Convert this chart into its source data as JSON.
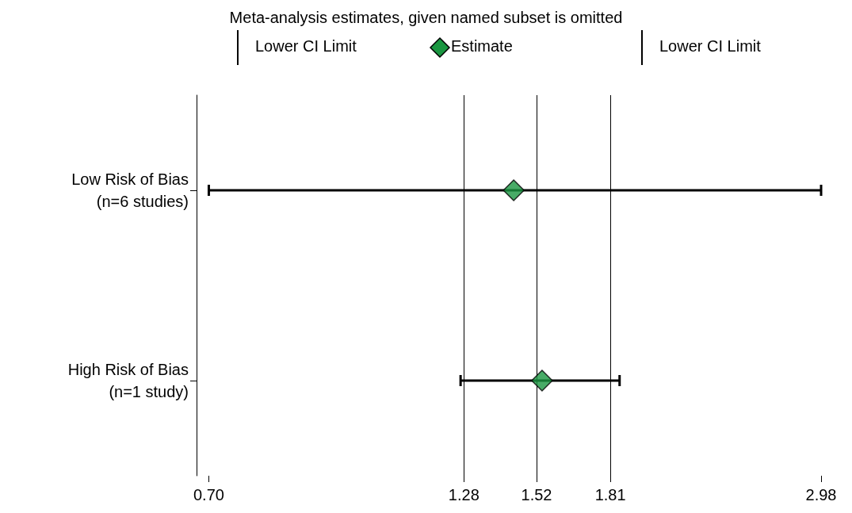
{
  "chart_data": {
    "type": "scatter",
    "orientation": "horizontal",
    "legend_title": "Meta-analysis estimates, given named subset is omitted",
    "legend": "top",
    "categories": [
      "Low Risk of Bias\n(n=6 studies)",
      "High Risk of Bias\n(n=1 study)"
    ],
    "series": [
      {
        "name": "Estimate",
        "color": "#1a9641",
        "marker": "diamond",
        "values": [
          1.44,
          1.54
        ],
        "errors": [
          [
            0.7,
            2.98
          ],
          [
            1.27,
            1.85
          ]
        ]
      }
    ],
    "annotations": [
      "Lower CI Limit",
      "Lower CI Limit"
    ],
    "log": "x",
    "xlim": [
      0.68,
      2.98
    ],
    "xticks": [
      {
        "value": 0.7,
        "label": "0.70"
      },
      1.28,
      1.52,
      1.81,
      2.98
    ],
    "ref_lines": [
      {
        "axis": "x",
        "value": 1.28,
        "color": "#000000"
      },
      {
        "axis": "x",
        "value": 1.52,
        "color": "#000000"
      },
      {
        "axis": "x",
        "value": 1.81,
        "color": "#000000"
      }
    ],
    "grid": false
  }
}
